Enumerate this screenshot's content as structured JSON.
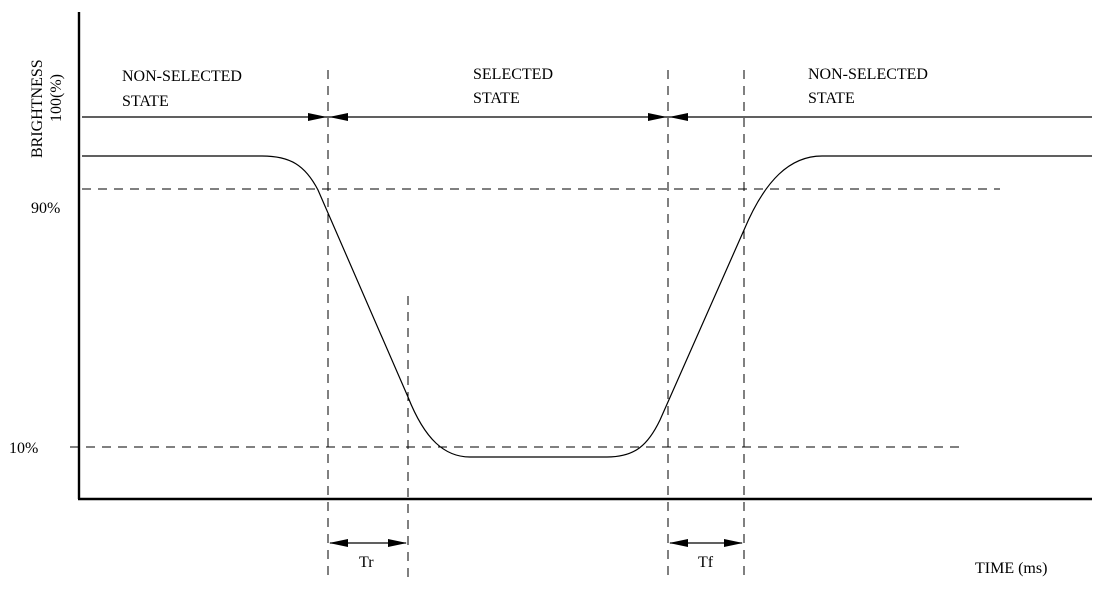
{
  "y_axis": {
    "label": "BRIGHTNESS",
    "unit_label": "100(%)",
    "ticks": [
      "90%",
      "10%"
    ]
  },
  "x_axis": {
    "label": "TIME (ms)"
  },
  "states": [
    {
      "line1": "NON-SELECTED",
      "line2": "STATE"
    },
    {
      "line1": "SELECTED",
      "line2": "STATE"
    },
    {
      "line1": "NON-SELECTED",
      "line2": "STATE"
    }
  ],
  "intervals": {
    "rise": "Tr",
    "fall": "Tf"
  }
}
